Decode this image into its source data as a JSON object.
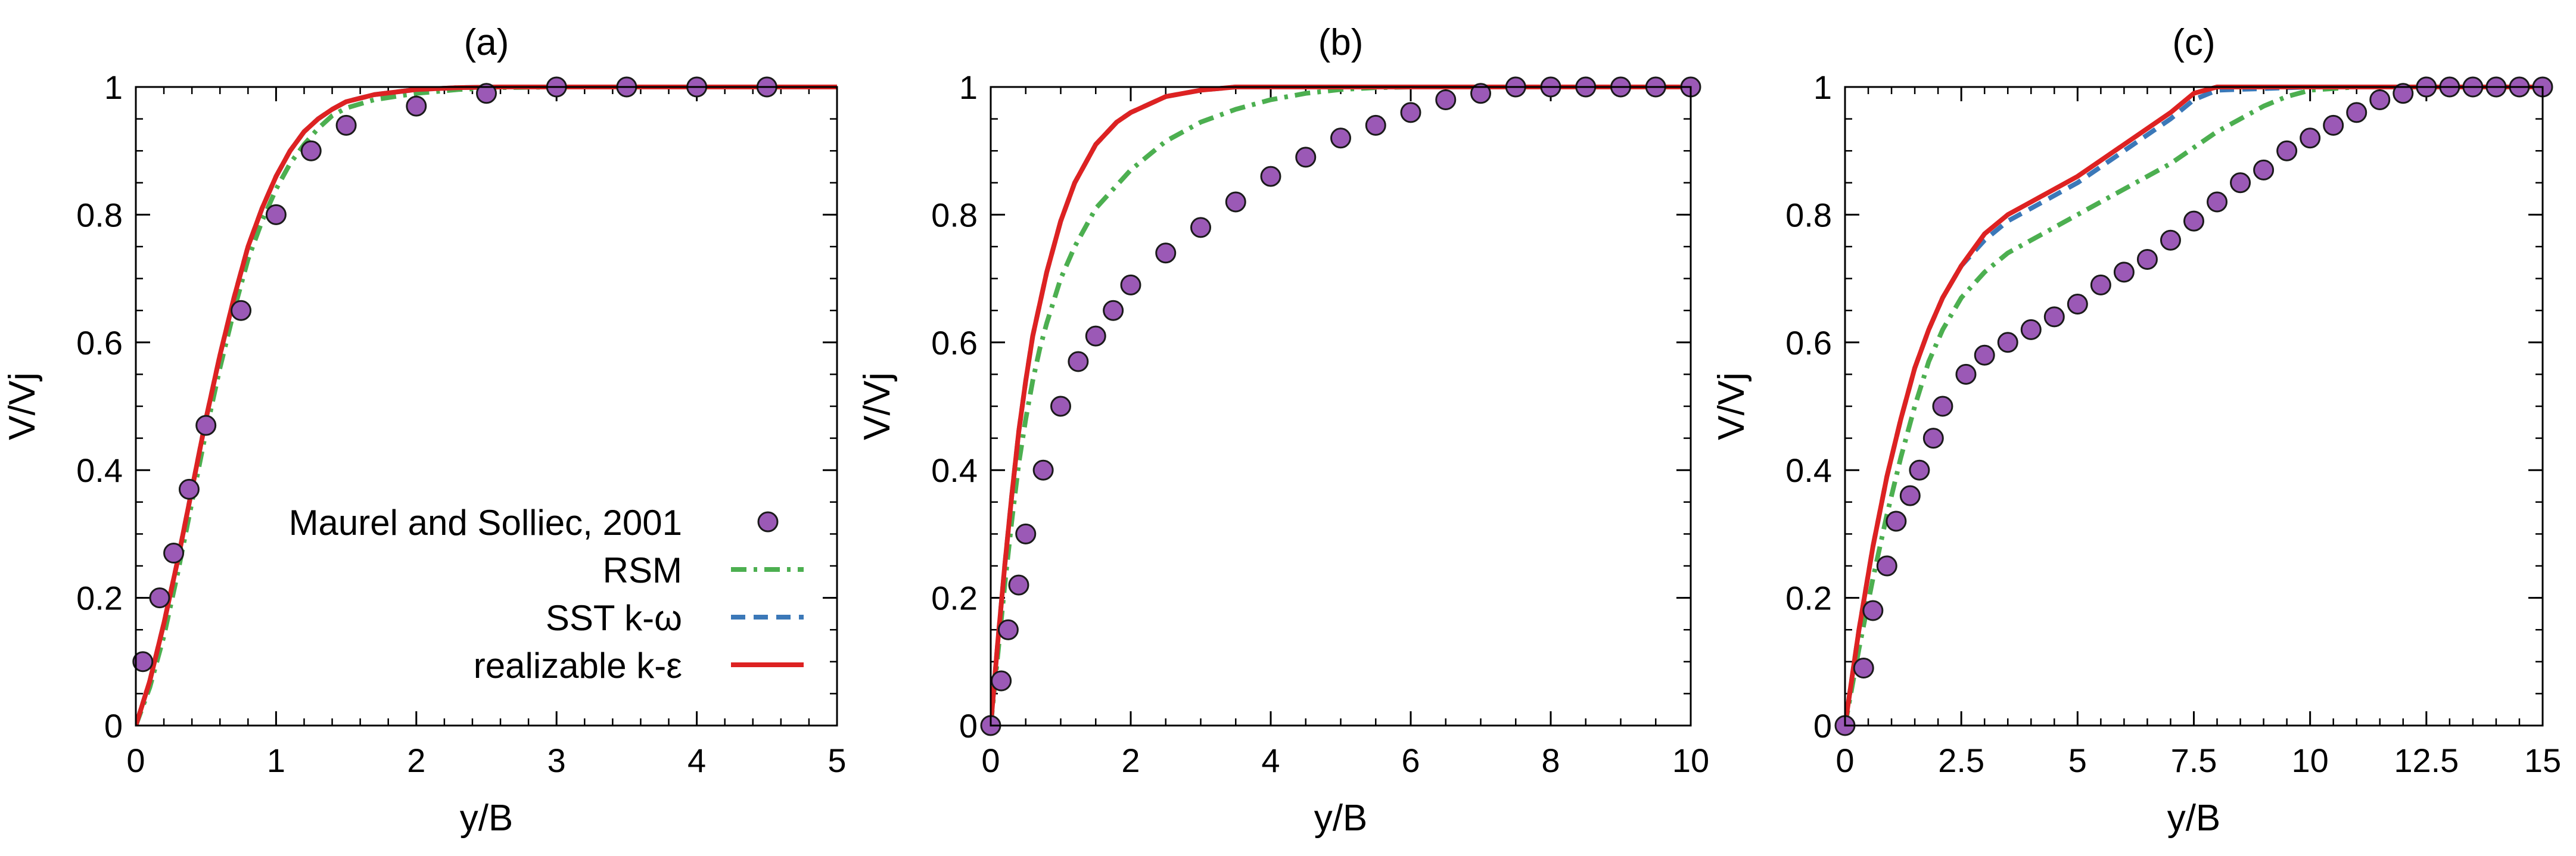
{
  "legend": {
    "entries": [
      {
        "label": "Maurel and Solliec, 2001",
        "kind": "marker",
        "color": "#9b59b6",
        "edge": "#1a1a1a"
      },
      {
        "label": "RSM",
        "kind": "dashdot",
        "color": "#4caf50"
      },
      {
        "label": "SST k-ω",
        "kind": "dashed",
        "color": "#3b78b8"
      },
      {
        "label": "realizable k-ε",
        "kind": "solid",
        "color": "#dd2222"
      }
    ]
  },
  "chart_data": [
    {
      "type": "line",
      "title": "(a)",
      "xlabel": "y/B",
      "ylabel": "V/Vj",
      "xlim": [
        0,
        5
      ],
      "ylim": [
        0,
        1
      ],
      "xticks": [
        0,
        1,
        2,
        3,
        4,
        5
      ],
      "xtick_labels": [
        "0",
        "1",
        "2",
        "3",
        "4",
        "5"
      ],
      "yticks": [
        0,
        0.2,
        0.4,
        0.6,
        0.8,
        1
      ],
      "ytick_labels": [
        "0",
        "0.2",
        "0.4",
        "0.6",
        "0.8",
        "1"
      ],
      "series": [
        {
          "name": "Maurel and Solliec, 2001",
          "kind": "marker",
          "x": [
            0.05,
            0.17,
            0.27,
            0.38,
            0.5,
            0.75,
            1.0,
            1.25,
            1.5,
            2.0,
            2.5,
            3.0,
            3.5,
            4.0,
            4.5
          ],
          "y": [
            0.1,
            0.2,
            0.27,
            0.37,
            0.47,
            0.65,
            0.8,
            0.9,
            0.94,
            0.97,
            0.99,
            1.0,
            1.0,
            1.0,
            1.0
          ]
        },
        {
          "name": "RSM",
          "kind": "dashdot",
          "x": [
            0,
            0.1,
            0.2,
            0.3,
            0.4,
            0.5,
            0.6,
            0.7,
            0.8,
            0.9,
            1.0,
            1.1,
            1.2,
            1.3,
            1.4,
            1.5,
            1.7,
            2.0,
            2.3,
            2.6,
            3.0,
            4.0,
            5.0
          ],
          "y": [
            0,
            0.06,
            0.14,
            0.24,
            0.35,
            0.46,
            0.56,
            0.65,
            0.73,
            0.79,
            0.84,
            0.88,
            0.91,
            0.935,
            0.955,
            0.967,
            0.98,
            0.99,
            0.996,
            0.999,
            1.0,
            1.0,
            1.0
          ]
        },
        {
          "name": "SST k-ω",
          "kind": "dashed",
          "x": [
            0,
            0.1,
            0.2,
            0.3,
            0.4,
            0.5,
            0.6,
            0.7,
            0.8,
            0.9,
            1.0,
            1.1,
            1.2,
            1.3,
            1.4,
            1.5,
            1.7,
            2.0,
            2.3,
            2.6,
            3.0,
            4.0,
            5.0
          ],
          "y": [
            0,
            0.07,
            0.16,
            0.26,
            0.37,
            0.48,
            0.58,
            0.67,
            0.75,
            0.81,
            0.86,
            0.9,
            0.93,
            0.95,
            0.965,
            0.977,
            0.988,
            0.996,
            0.999,
            1.0,
            1.0,
            1.0,
            1.0
          ]
        },
        {
          "name": "realizable k-ε",
          "kind": "solid",
          "x": [
            0,
            0.1,
            0.2,
            0.3,
            0.4,
            0.5,
            0.6,
            0.7,
            0.8,
            0.9,
            1.0,
            1.1,
            1.2,
            1.3,
            1.4,
            1.5,
            1.7,
            2.0,
            2.3,
            2.6,
            3.0,
            4.0,
            5.0
          ],
          "y": [
            0,
            0.07,
            0.16,
            0.26,
            0.37,
            0.48,
            0.58,
            0.67,
            0.75,
            0.81,
            0.86,
            0.9,
            0.93,
            0.95,
            0.965,
            0.977,
            0.988,
            0.996,
            0.999,
            1.0,
            1.0,
            1.0,
            1.0
          ]
        }
      ]
    },
    {
      "type": "line",
      "title": "(b)",
      "xlabel": "y/B",
      "ylabel": "V/Vj",
      "xlim": [
        0,
        10
      ],
      "ylim": [
        0,
        1
      ],
      "xticks": [
        0,
        2,
        4,
        6,
        8,
        10
      ],
      "xtick_labels": [
        "0",
        "2",
        "4",
        "6",
        "8",
        "10"
      ],
      "yticks": [
        0,
        0.2,
        0.4,
        0.6,
        0.8,
        1
      ],
      "ytick_labels": [
        "0",
        "0.2",
        "0.4",
        "0.6",
        "0.8",
        "1"
      ],
      "series": [
        {
          "name": "Maurel and Solliec, 2001",
          "kind": "marker",
          "x": [
            0.0,
            0.15,
            0.25,
            0.4,
            0.5,
            0.75,
            1.0,
            1.25,
            1.5,
            1.75,
            2.0,
            2.5,
            3.0,
            3.5,
            4.0,
            4.5,
            5.0,
            5.5,
            6.0,
            6.5,
            7.0,
            7.5,
            8.0,
            8.5,
            9.0,
            9.5,
            10.0
          ],
          "y": [
            0.0,
            0.07,
            0.15,
            0.22,
            0.3,
            0.4,
            0.5,
            0.57,
            0.61,
            0.65,
            0.69,
            0.74,
            0.78,
            0.82,
            0.86,
            0.89,
            0.92,
            0.94,
            0.96,
            0.98,
            0.99,
            1.0,
            1.0,
            1.0,
            1.0,
            1.0,
            1.0
          ]
        },
        {
          "name": "RSM",
          "kind": "dashdot",
          "x": [
            0,
            0.1,
            0.2,
            0.3,
            0.4,
            0.5,
            0.6,
            0.7,
            0.8,
            1.0,
            1.2,
            1.5,
            2.0,
            2.5,
            3.0,
            3.5,
            4.0,
            4.5,
            5.0,
            5.5,
            6.0,
            7.0,
            8.0,
            10.0
          ],
          "y": [
            0,
            0.11,
            0.22,
            0.32,
            0.41,
            0.48,
            0.54,
            0.59,
            0.63,
            0.7,
            0.75,
            0.81,
            0.87,
            0.915,
            0.945,
            0.965,
            0.98,
            0.99,
            0.996,
            0.999,
            1.0,
            1.0,
            1.0,
            1.0
          ]
        },
        {
          "name": "SST k-ω",
          "kind": "dashed",
          "x": [
            0,
            0.1,
            0.2,
            0.3,
            0.4,
            0.5,
            0.6,
            0.8,
            1.0,
            1.2,
            1.5,
            1.8,
            2.0,
            2.5,
            3.0,
            3.5,
            4.0,
            5.0,
            6.0,
            8.0,
            10.0
          ],
          "y": [
            0,
            0.13,
            0.25,
            0.36,
            0.46,
            0.54,
            0.61,
            0.71,
            0.79,
            0.85,
            0.91,
            0.945,
            0.96,
            0.985,
            0.995,
            1.0,
            1.0,
            1.0,
            1.0,
            1.0,
            1.0
          ]
        },
        {
          "name": "realizable k-ε",
          "kind": "solid",
          "x": [
            0,
            0.1,
            0.2,
            0.3,
            0.4,
            0.5,
            0.6,
            0.8,
            1.0,
            1.2,
            1.5,
            1.8,
            2.0,
            2.5,
            3.0,
            3.5,
            4.0,
            5.0,
            6.0,
            8.0,
            10.0
          ],
          "y": [
            0,
            0.13,
            0.25,
            0.36,
            0.46,
            0.54,
            0.61,
            0.71,
            0.79,
            0.85,
            0.91,
            0.945,
            0.96,
            0.985,
            0.995,
            1.0,
            1.0,
            1.0,
            1.0,
            1.0,
            1.0
          ]
        }
      ]
    },
    {
      "type": "line",
      "title": "(c)",
      "xlabel": "y/B",
      "ylabel": "V/Vj",
      "xlim": [
        0,
        15
      ],
      "ylim": [
        0,
        1
      ],
      "xticks": [
        0,
        2.5,
        5,
        7.5,
        10,
        12.5,
        15
      ],
      "xtick_labels": [
        "0",
        "2.5",
        "5",
        "7.5",
        "10",
        "12.5",
        "15"
      ],
      "yticks": [
        0,
        0.2,
        0.4,
        0.6,
        0.8,
        1
      ],
      "ytick_labels": [
        "0",
        "0.2",
        "0.4",
        "0.6",
        "0.8",
        "1"
      ],
      "series": [
        {
          "name": "Maurel and Solliec, 2001",
          "kind": "marker",
          "x": [
            0.0,
            0.4,
            0.6,
            0.9,
            1.1,
            1.4,
            1.6,
            1.9,
            2.1,
            2.6,
            3.0,
            3.5,
            4.0,
            4.5,
            5.0,
            5.5,
            6.0,
            6.5,
            7.0,
            7.5,
            8.0,
            8.5,
            9.0,
            9.5,
            10.0,
            10.5,
            11.0,
            11.5,
            12.0,
            12.5,
            13.0,
            13.5,
            14.0,
            14.5,
            15.0
          ],
          "y": [
            0.0,
            0.09,
            0.18,
            0.25,
            0.32,
            0.36,
            0.4,
            0.45,
            0.5,
            0.55,
            0.58,
            0.6,
            0.62,
            0.64,
            0.66,
            0.69,
            0.71,
            0.73,
            0.76,
            0.79,
            0.82,
            0.85,
            0.87,
            0.9,
            0.92,
            0.94,
            0.96,
            0.98,
            0.99,
            1.0,
            1.0,
            1.0,
            1.0,
            1.0,
            1.0
          ]
        },
        {
          "name": "RSM",
          "kind": "dashdot",
          "x": [
            0,
            0.3,
            0.6,
            0.9,
            1.2,
            1.5,
            1.8,
            2.1,
            2.5,
            3.0,
            3.5,
            4.0,
            5.0,
            6.0,
            7.0,
            8.0,
            8.5,
            9.0,
            9.5,
            10.0,
            11.0,
            12.0,
            13.0,
            15.0
          ],
          "y": [
            0,
            0.12,
            0.23,
            0.33,
            0.42,
            0.5,
            0.57,
            0.62,
            0.67,
            0.71,
            0.74,
            0.76,
            0.8,
            0.84,
            0.88,
            0.93,
            0.95,
            0.97,
            0.985,
            0.995,
            1.0,
            1.0,
            1.0,
            1.0
          ]
        },
        {
          "name": "SST k-ω",
          "kind": "dashed",
          "x": [
            0,
            0.3,
            0.6,
            0.9,
            1.2,
            1.5,
            1.8,
            2.1,
            2.5,
            3.0,
            3.5,
            4.0,
            5.0,
            6.0,
            7.0,
            7.5,
            8.0,
            10.0,
            12.5,
            15.0
          ],
          "y": [
            0,
            0.15,
            0.28,
            0.39,
            0.48,
            0.56,
            0.62,
            0.67,
            0.72,
            0.76,
            0.79,
            0.81,
            0.85,
            0.9,
            0.95,
            0.98,
            0.995,
            1.0,
            1.0,
            1.0
          ]
        },
        {
          "name": "realizable k-ε",
          "kind": "solid",
          "x": [
            0,
            0.3,
            0.6,
            0.9,
            1.2,
            1.5,
            1.8,
            2.1,
            2.5,
            3.0,
            3.5,
            4.0,
            5.0,
            6.0,
            7.0,
            7.5,
            8.0,
            10.0,
            12.5,
            15.0
          ],
          "y": [
            0,
            0.15,
            0.28,
            0.39,
            0.48,
            0.56,
            0.62,
            0.67,
            0.72,
            0.77,
            0.8,
            0.82,
            0.86,
            0.91,
            0.96,
            0.99,
            1.0,
            1.0,
            1.0,
            1.0
          ]
        }
      ]
    }
  ]
}
